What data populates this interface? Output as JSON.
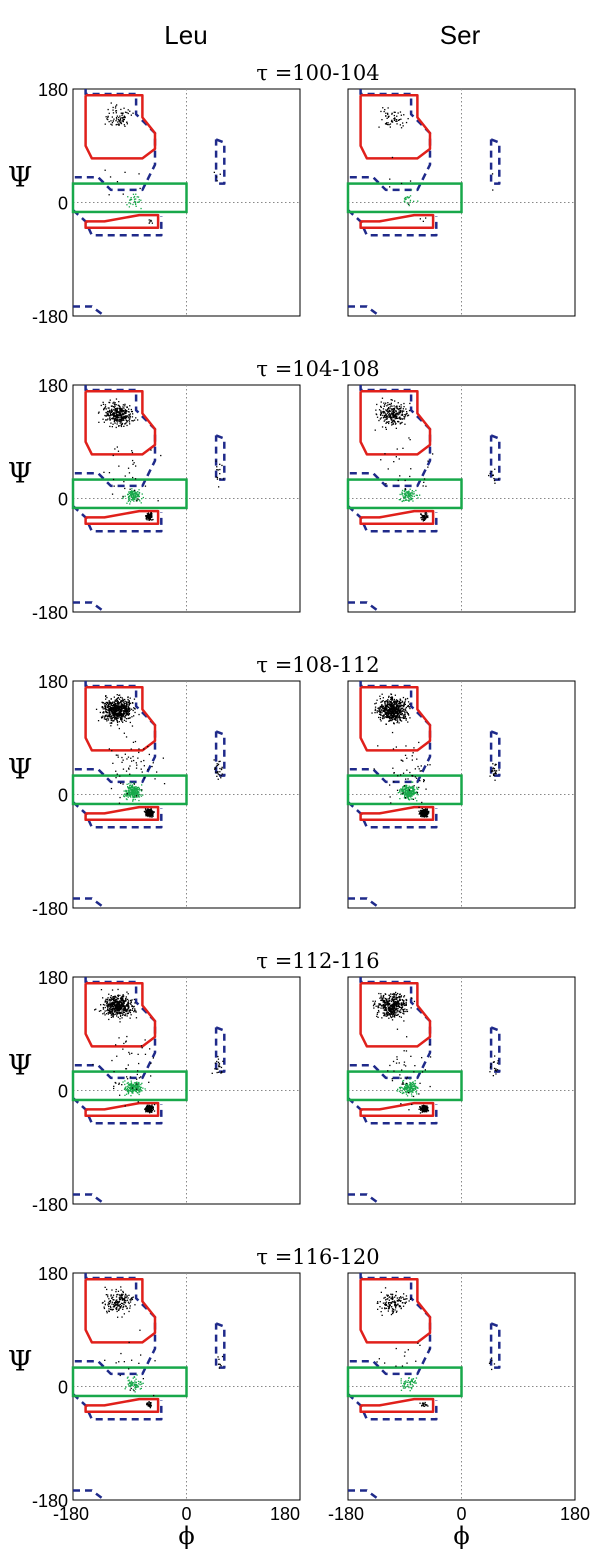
{
  "columns": [
    "Leu",
    "Ser"
  ],
  "axis_tick_labels": {
    "x": [
      "-180",
      "0",
      "180"
    ],
    "y": [
      "180",
      "0",
      "-180"
    ]
  },
  "xlabel": "ϕ",
  "ylabel": "Ψ",
  "colors": {
    "region_red": "#e0201b",
    "region_green": "#18a84a",
    "contour_blue": "#1f2a8a",
    "points_black": "#000000",
    "points_green": "#18a84a"
  },
  "chart_data": [
    {
      "title": "τ =100-104",
      "type": "scatter",
      "density": [
        0.12,
        0.08
      ],
      "xlim": [
        -180,
        180
      ],
      "ylim": [
        -180,
        180
      ]
    },
    {
      "title": "τ =104-108",
      "type": "scatter",
      "density": [
        0.45,
        0.35
      ],
      "xlim": [
        -180,
        180
      ],
      "ylim": [
        -180,
        180
      ]
    },
    {
      "title": "τ =108-112",
      "type": "scatter",
      "density": [
        0.9,
        0.85
      ],
      "xlim": [
        -180,
        180
      ],
      "ylim": [
        -180,
        180
      ]
    },
    {
      "title": "τ =112-116",
      "type": "scatter",
      "density": [
        0.7,
        0.6
      ],
      "xlim": [
        -180,
        180
      ],
      "ylim": [
        -180,
        180
      ]
    },
    {
      "title": "τ =116-120",
      "type": "scatter",
      "density": [
        0.25,
        0.2
      ],
      "xlim": [
        -180,
        180
      ],
      "ylim": [
        -180,
        180
      ]
    }
  ]
}
